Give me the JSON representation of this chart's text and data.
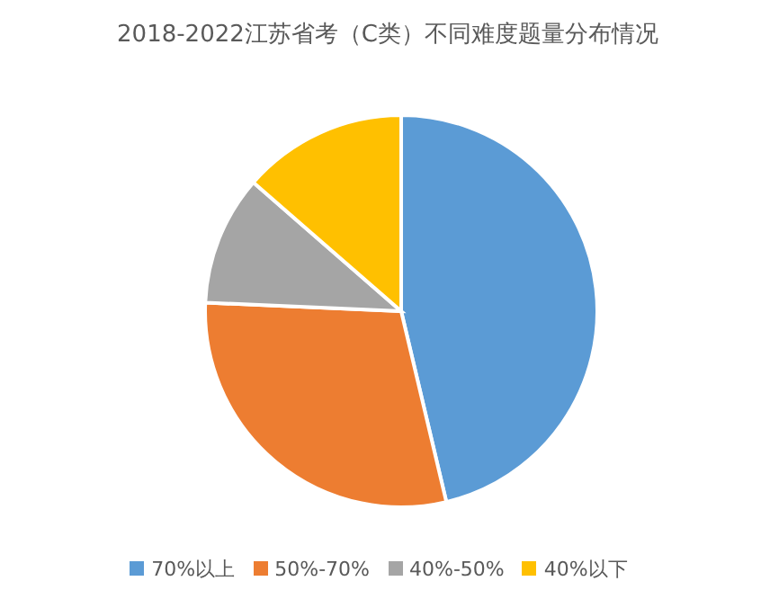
{
  "chart_data": {
    "type": "pie",
    "title": "2018-2022江苏省考（C类）不同难度题量分布情况",
    "categories": [
      "70%以上",
      "50%-70%",
      "40%-50%",
      "40%以下"
    ],
    "values": [
      46.3,
      29.4,
      10.7,
      13.6
    ],
    "colors": [
      "#5b9bd5",
      "#ed7d31",
      "#a5a5a5",
      "#ffc000"
    ],
    "legend": "bottom"
  }
}
